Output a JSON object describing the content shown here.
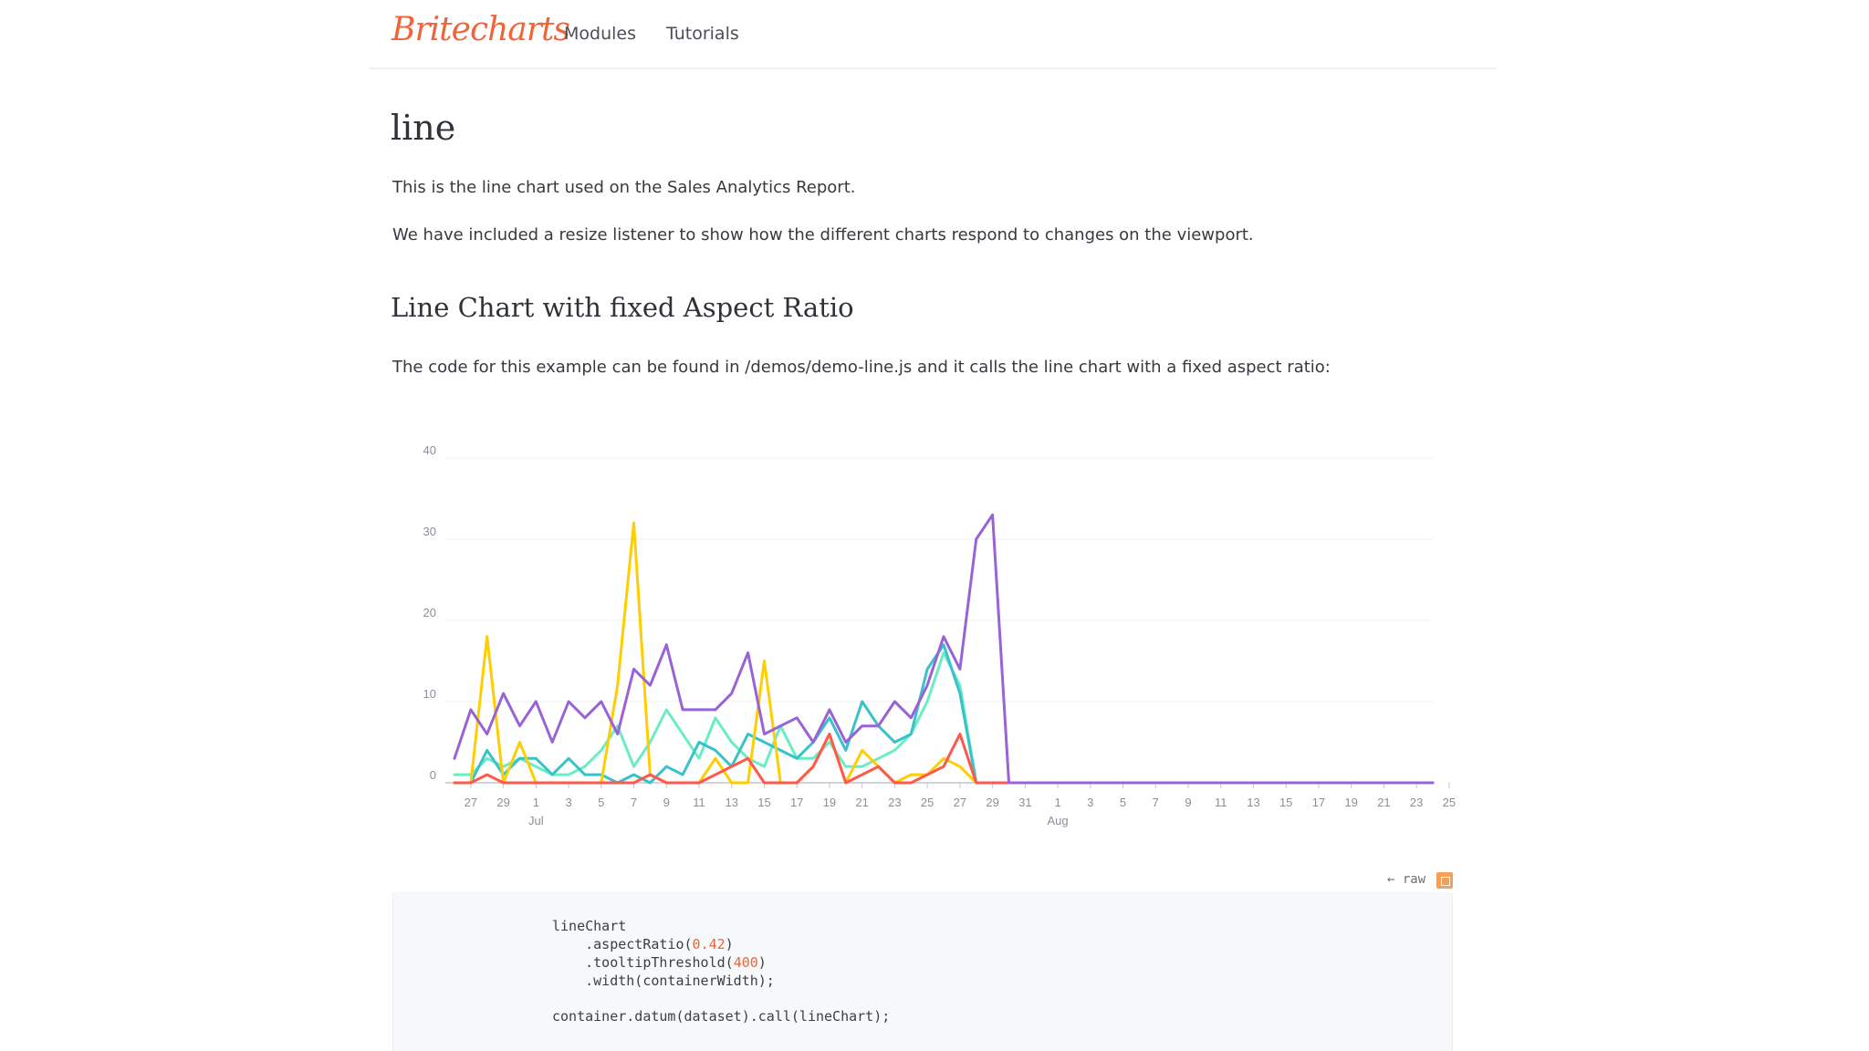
{
  "nav": {
    "logo": "Britecharts",
    "links": [
      "Modules",
      "Tutorials"
    ]
  },
  "page": {
    "title": "line",
    "intro": "This is the line chart used on the Sales Analytics Report.",
    "resize_note": "We have included a resize listener to show how the different charts respond to changes on the viewport.",
    "section_title": "Line Chart with fixed Aspect Ratio",
    "section_desc": "The code for this example can be found in /demos/demo-line.js and it calls the line chart with a fixed aspect ratio:"
  },
  "code": {
    "raw_label": "← raw",
    "lines": {
      "l1": "lineChart",
      "l2a": "    .aspectRatio(",
      "l2n": "0.42",
      "l2b": ")",
      "l3a": "    .tooltipThreshold(",
      "l3n": "400",
      "l3b": ")",
      "l4": "    .width(containerWidth);",
      "l5": "container.datum(dataset).call(lineChart);"
    }
  },
  "chart_data": {
    "type": "line",
    "title": "",
    "xlabel": "",
    "ylabel": "",
    "ylim": [
      0,
      40
    ],
    "y_ticks": [
      "0",
      "10",
      "20",
      "30",
      "40"
    ],
    "grid": "horizontal",
    "x_ticks": [
      "27",
      "29",
      "1",
      "3",
      "5",
      "7",
      "9",
      "11",
      "13",
      "15",
      "17",
      "19",
      "21",
      "23",
      "25",
      "27",
      "29",
      "31",
      "1",
      "3",
      "5",
      "7",
      "9",
      "11",
      "13",
      "15",
      "17",
      "19",
      "21",
      "23",
      "25"
    ],
    "month_labels": [
      {
        "label": "Jul",
        "tick": "1"
      },
      {
        "label": "Aug",
        "tick": "1"
      }
    ],
    "x_dates": [
      "2016-06-26",
      "2016-06-27",
      "2016-06-28",
      "2016-06-29",
      "2016-06-30",
      "2016-07-01",
      "2016-07-02",
      "2016-07-03",
      "2016-07-04",
      "2016-07-05",
      "2016-07-06",
      "2016-07-07",
      "2016-07-08",
      "2016-07-09",
      "2016-07-10",
      "2016-07-11",
      "2016-07-12",
      "2016-07-13",
      "2016-07-14",
      "2016-07-15",
      "2016-07-16",
      "2016-07-17",
      "2016-07-18",
      "2016-07-19",
      "2016-07-20",
      "2016-07-21",
      "2016-07-22",
      "2016-07-23",
      "2016-07-24",
      "2016-07-25",
      "2016-07-26",
      "2016-07-27",
      "2016-07-28",
      "2016-07-29",
      "2016-07-30",
      "2016-07-31",
      "2016-08-01",
      "2016-08-02",
      "2016-08-03",
      "2016-08-04",
      "2016-08-05",
      "2016-08-06",
      "2016-08-07",
      "2016-08-08",
      "2016-08-09",
      "2016-08-10",
      "2016-08-11",
      "2016-08-12",
      "2016-08-13",
      "2016-08-14",
      "2016-08-15",
      "2016-08-16",
      "2016-08-17",
      "2016-08-18",
      "2016-08-19",
      "2016-08-20",
      "2016-08-21",
      "2016-08-22",
      "2016-08-23",
      "2016-08-24",
      "2016-08-25"
    ],
    "series": [
      {
        "color": "#6aedc7",
        "values": [
          1,
          1,
          3,
          2,
          3,
          2,
          1,
          1,
          2,
          4,
          7,
          2,
          5,
          9,
          6,
          3,
          8,
          5,
          3,
          2,
          7,
          3,
          3,
          5,
          2,
          2,
          3,
          4,
          6,
          10,
          16,
          12,
          0,
          0,
          0,
          0,
          0,
          0,
          0,
          0,
          0,
          0,
          0,
          0,
          0,
          0,
          0,
          0,
          0,
          0,
          0,
          0,
          0,
          0,
          0,
          0,
          0,
          0,
          0,
          0,
          0
        ]
      },
      {
        "color": "#39c2c9",
        "values": [
          0,
          0,
          4,
          1,
          3,
          3,
          1,
          3,
          1,
          1,
          0,
          1,
          0,
          2,
          1,
          5,
          4,
          2,
          6,
          5,
          4,
          3,
          5,
          8,
          4,
          10,
          7,
          5,
          6,
          14,
          17,
          11,
          0,
          0,
          0,
          0,
          0,
          0,
          0,
          0,
          0,
          0,
          0,
          0,
          0,
          0,
          0,
          0,
          0,
          0,
          0,
          0,
          0,
          0,
          0,
          0,
          0,
          0,
          0,
          0,
          0
        ]
      },
      {
        "color": "#ffce00",
        "values": [
          0,
          0,
          18,
          0,
          5,
          0,
          0,
          0,
          0,
          0,
          12,
          32,
          1,
          0,
          0,
          0,
          3,
          0,
          0,
          15,
          0,
          0,
          2,
          6,
          0,
          4,
          2,
          0,
          1,
          1,
          3,
          2,
          0,
          0,
          0,
          0,
          0,
          0,
          0,
          0,
          0,
          0,
          0,
          0,
          0,
          0,
          0,
          0,
          0,
          0,
          0,
          0,
          0,
          0,
          0,
          0,
          0,
          0,
          0,
          0,
          0
        ]
      },
      {
        "color": "#ff584c",
        "values": [
          0,
          0,
          1,
          0,
          0,
          0,
          0,
          0,
          0,
          0,
          0,
          0,
          1,
          0,
          0,
          0,
          1,
          2,
          3,
          0,
          0,
          0,
          2,
          6,
          0,
          1,
          2,
          0,
          0,
          1,
          2,
          6,
          0,
          0,
          0,
          0,
          0,
          0,
          0,
          0,
          0,
          0,
          0,
          0,
          0,
          0,
          0,
          0,
          0,
          0,
          0,
          0,
          0,
          0,
          0,
          0,
          0,
          0,
          0,
          0,
          0
        ]
      },
      {
        "color": "#9963d5",
        "values": [
          3,
          9,
          6,
          11,
          7,
          10,
          5,
          10,
          8,
          10,
          6,
          14,
          12,
          17,
          9,
          9,
          9,
          11,
          16,
          6,
          7,
          8,
          5,
          9,
          5,
          7,
          7,
          10,
          8,
          12,
          18,
          14,
          30,
          33,
          0,
          0,
          0,
          0,
          0,
          0,
          0,
          0,
          0,
          0,
          0,
          0,
          0,
          0,
          0,
          0,
          0,
          0,
          0,
          0,
          0,
          0,
          0,
          0,
          0,
          0,
          0
        ]
      }
    ]
  }
}
